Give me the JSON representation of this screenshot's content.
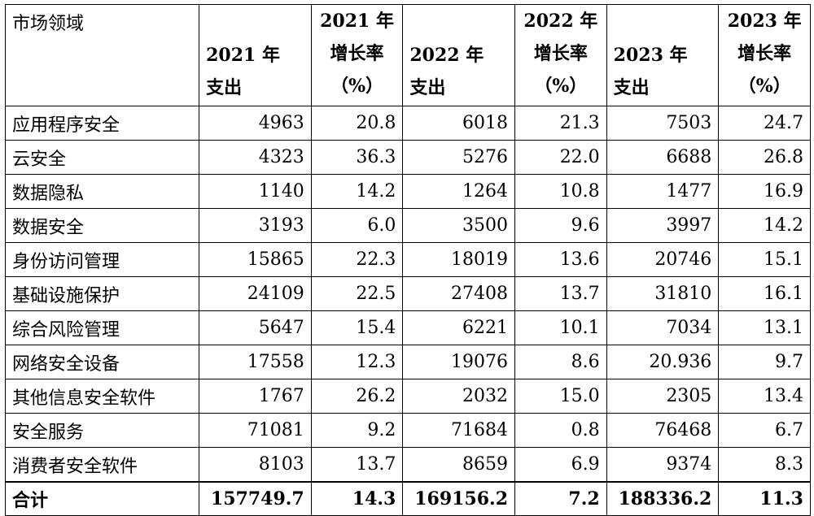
{
  "header": {
    "col0": "市场领域",
    "col1": [
      "2021 年",
      "支出"
    ],
    "col2": [
      "2021 年",
      "增长率",
      "（%）"
    ],
    "col3": [
      "2022 年",
      "支出"
    ],
    "col4": [
      "2022 年",
      "增长率",
      "（%）"
    ],
    "col5": [
      "2023 年",
      "支出"
    ],
    "col6": [
      "2023 年",
      "增长率",
      "（%）"
    ]
  },
  "rows": [
    [
      "应用程序安全",
      "4963",
      "20.8",
      "6018",
      "21.3",
      "7503",
      "24.7"
    ],
    [
      "云安全",
      "4323",
      "36.3",
      "5276",
      "22.0",
      "6688",
      "26.8"
    ],
    [
      "数据隐私",
      "1140",
      "14.2",
      "1264",
      "10.8",
      "1477",
      "16.9"
    ],
    [
      "数据安全",
      "3193",
      "6.0",
      "3500",
      "9.6",
      "3997",
      "14.2"
    ],
    [
      "身份访问管理",
      "15865",
      "22.3",
      "18019",
      "13.6",
      "20746",
      "15.1"
    ],
    [
      "基础设施保护",
      "24109",
      "22.5",
      "27408",
      "13.7",
      "31810",
      "16.1"
    ],
    [
      "综合风险管理",
      "5647",
      "15.4",
      "6221",
      "10.1",
      "7034",
      "13.1"
    ],
    [
      "网络安全设备",
      "17558",
      "12.3",
      "19076",
      "8.6",
      "20.936",
      "9.7"
    ],
    [
      "其他信息安全软件",
      "1767",
      "26.2",
      "2032",
      "15.0",
      "2305",
      "13.4"
    ],
    [
      "安全服务",
      "71081",
      "9.2",
      "71684",
      "0.8",
      "76468",
      "6.7"
    ],
    [
      "消费者安全软件",
      "8103",
      "13.7",
      "8659",
      "6.9",
      "9374",
      "8.3"
    ]
  ],
  "total": [
    "合计",
    "157749.7",
    "14.3",
    "169156.2",
    "7.2",
    "188336.2",
    "11.3"
  ]
}
